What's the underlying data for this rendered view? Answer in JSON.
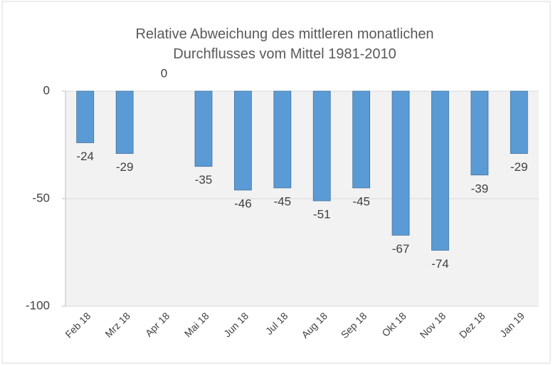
{
  "chart_data": {
    "type": "bar",
    "title": "Relative Abweichung des mittleren monatlichen Durchflusses vom Mittel 1981-2010",
    "categories": [
      "Feb 18",
      "Mrz 18",
      "Apr 18",
      "Mai 18",
      "Jun 18",
      "Jul 18",
      "Aug 18",
      "Sep 18",
      "Okt 18",
      "Nov 18",
      "Dez 18",
      "Jan 19"
    ],
    "values": [
      -24,
      -29,
      0,
      -35,
      -46,
      -45,
      -51,
      -45,
      -67,
      -74,
      -39,
      -29
    ],
    "color": "#5b9bd5",
    "ylim": [
      -100,
      0
    ],
    "yticks": [
      -100,
      -50,
      0
    ],
    "grid": true
  }
}
